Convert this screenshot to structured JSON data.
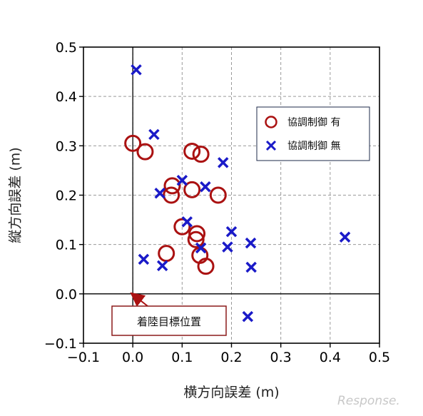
{
  "chart_data": {
    "type": "scatter",
    "xlabel": "横方向誤差 (m)",
    "ylabel": "縦方向誤差 (m)",
    "xlim": [
      -0.1,
      0.5
    ],
    "ylim": [
      -0.1,
      0.5
    ],
    "x_ticks": [
      "−0.1",
      "0.0",
      "0.1",
      "0.2",
      "0.3",
      "0.4",
      "0.5"
    ],
    "y_ticks": [
      "−0.1",
      "0.0",
      "0.1",
      "0.2",
      "0.3",
      "0.4",
      "0.5"
    ],
    "grid": true,
    "legend_position": "upper-right",
    "series": [
      {
        "name": "協調制御 有",
        "marker": "circle",
        "color": "#aa1111",
        "points": [
          [
            0.0,
            0.305
          ],
          [
            0.025,
            0.288
          ],
          [
            0.12,
            0.289
          ],
          [
            0.138,
            0.283
          ],
          [
            0.08,
            0.219
          ],
          [
            0.078,
            0.2
          ],
          [
            0.12,
            0.211
          ],
          [
            0.173,
            0.2
          ],
          [
            0.1,
            0.136
          ],
          [
            0.13,
            0.122
          ],
          [
            0.128,
            0.11
          ],
          [
            0.068,
            0.082
          ],
          [
            0.136,
            0.078
          ],
          [
            0.148,
            0.056
          ]
        ]
      },
      {
        "name": "協調制御 無",
        "marker": "x",
        "color": "#1a1ac8",
        "points": [
          [
            0.007,
            0.454
          ],
          [
            0.043,
            0.323
          ],
          [
            0.183,
            0.266
          ],
          [
            0.1,
            0.23
          ],
          [
            0.055,
            0.204
          ],
          [
            0.147,
            0.217
          ],
          [
            0.11,
            0.146
          ],
          [
            0.2,
            0.126
          ],
          [
            0.239,
            0.103
          ],
          [
            0.43,
            0.115
          ],
          [
            0.138,
            0.093
          ],
          [
            0.192,
            0.095
          ],
          [
            0.022,
            0.07
          ],
          [
            0.06,
            0.057
          ],
          [
            0.24,
            0.054
          ],
          [
            0.233,
            -0.046
          ]
        ]
      }
    ],
    "annotation": {
      "text": "着陸目標位置",
      "target": [
        0.0,
        0.0
      ]
    }
  },
  "watermark": "Response."
}
